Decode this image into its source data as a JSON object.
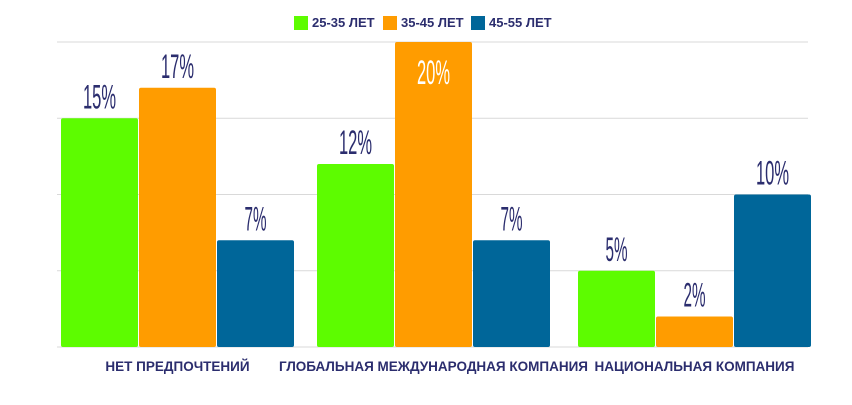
{
  "chart_data": {
    "type": "bar",
    "categories": [
      "НЕТ ПРЕДПОЧТЕНИЙ",
      "ГЛОБАЛЬНАЯ МЕЖДУНАРОДНАЯ КОМПАНИЯ",
      "НАЦИОНАЛЬНАЯ КОМПАНИЯ"
    ],
    "series": [
      {
        "name": "25-35 ЛЕТ",
        "color": "#5dfc00",
        "values": [
          15,
          12,
          5
        ],
        "labels": [
          "15%",
          "12%",
          "5%"
        ]
      },
      {
        "name": "35-45 ЛЕТ",
        "color": "#ff9c00",
        "values": [
          17,
          20,
          2
        ],
        "labels": [
          "17%",
          "20%",
          "2%"
        ]
      },
      {
        "name": "45-55 ЛЕТ",
        "color": "#006699",
        "values": [
          7,
          7,
          10
        ],
        "labels": [
          "7%",
          "7%",
          "10%"
        ]
      }
    ],
    "ylim": [
      0,
      20
    ],
    "grid": true,
    "legend": "top-center",
    "title": "",
    "xlabel": "",
    "ylabel": ""
  }
}
